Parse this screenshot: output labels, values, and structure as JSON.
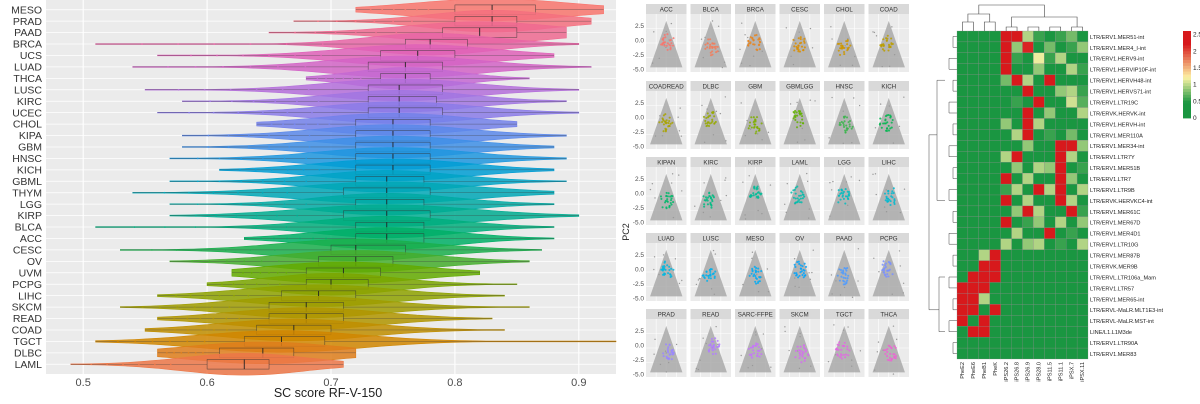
{
  "violin": {
    "xlabel": "SC score RF-V-150",
    "xticks": [
      0.5,
      0.6,
      0.7,
      0.8,
      0.9
    ],
    "xlim": [
      0.47,
      0.93
    ]
  },
  "pca": {
    "ylabel": "PC2",
    "yticks": [
      "2.5",
      "0.0",
      "-2.5",
      "-5.0"
    ]
  },
  "heatmap": {
    "legend_ticks": [
      "2.5",
      "2",
      "1.5",
      "1",
      "0.5",
      "0"
    ],
    "colors": {
      "high": "#d7191c",
      "mid": "#fdf3a6",
      "low": "#1a9641"
    }
  },
  "chart_data": [
    {
      "type": "violin",
      "xlabel": "SC score RF-V-150",
      "xlim": [
        0.47,
        0.93
      ],
      "categories": [
        {
          "name": "MESO",
          "median": 0.83,
          "q1": 0.8,
          "q3": 0.865,
          "min": 0.72,
          "max": 0.92,
          "color": "#F8766D"
        },
        {
          "name": "PRAD",
          "median": 0.83,
          "q1": 0.8,
          "q3": 0.85,
          "min": 0.67,
          "max": 0.91,
          "color": "#F4707F"
        },
        {
          "name": "PAAD",
          "median": 0.82,
          "q1": 0.79,
          "q3": 0.85,
          "min": 0.65,
          "max": 0.89,
          "color": "#EF6A91"
        },
        {
          "name": "BRCA",
          "median": 0.78,
          "q1": 0.76,
          "q3": 0.81,
          "min": 0.51,
          "max": 0.9,
          "color": "#E865A6"
        },
        {
          "name": "UCS",
          "median": 0.77,
          "q1": 0.74,
          "q3": 0.8,
          "min": 0.56,
          "max": 0.88,
          "color": "#DF62B8"
        },
        {
          "name": "LUAD",
          "median": 0.76,
          "q1": 0.73,
          "q3": 0.79,
          "min": 0.54,
          "max": 0.91,
          "color": "#D264C6"
        },
        {
          "name": "THCA",
          "median": 0.76,
          "q1": 0.74,
          "q3": 0.78,
          "min": 0.68,
          "max": 0.86,
          "color": "#C469D2"
        },
        {
          "name": "LUSC",
          "median": 0.755,
          "q1": 0.73,
          "q3": 0.79,
          "min": 0.55,
          "max": 0.9,
          "color": "#B46FDB"
        },
        {
          "name": "KIRC",
          "median": 0.755,
          "q1": 0.73,
          "q3": 0.785,
          "min": 0.58,
          "max": 0.89,
          "color": "#A175E2"
        },
        {
          "name": "UCEC",
          "median": 0.755,
          "q1": 0.73,
          "q3": 0.79,
          "min": 0.56,
          "max": 0.9,
          "color": "#8B7BE8"
        },
        {
          "name": "CHOL",
          "median": 0.75,
          "q1": 0.72,
          "q3": 0.78,
          "min": 0.64,
          "max": 0.85,
          "color": "#7381EA"
        },
        {
          "name": "KIPA",
          "median": 0.75,
          "q1": 0.72,
          "q3": 0.78,
          "min": 0.58,
          "max": 0.89,
          "color": "#5A88EA"
        },
        {
          "name": "GBM",
          "median": 0.75,
          "q1": 0.72,
          "q3": 0.78,
          "min": 0.58,
          "max": 0.88,
          "color": "#3E8FE6"
        },
        {
          "name": "HNSC",
          "median": 0.75,
          "q1": 0.72,
          "q3": 0.78,
          "min": 0.57,
          "max": 0.89,
          "color": "#1F97DE"
        },
        {
          "name": "KICH",
          "median": 0.75,
          "q1": 0.72,
          "q3": 0.78,
          "min": 0.61,
          "max": 0.88,
          "color": "#009DD4"
        },
        {
          "name": "GBML",
          "median": 0.745,
          "q1": 0.72,
          "q3": 0.775,
          "min": 0.57,
          "max": 0.89,
          "color": "#00A3C6"
        },
        {
          "name": "THYM",
          "median": 0.745,
          "q1": 0.71,
          "q3": 0.78,
          "min": 0.54,
          "max": 0.88,
          "color": "#00A7B6"
        },
        {
          "name": "LGG",
          "median": 0.745,
          "q1": 0.72,
          "q3": 0.775,
          "min": 0.57,
          "max": 0.88,
          "color": "#00AAA4"
        },
        {
          "name": "KIRP",
          "median": 0.745,
          "q1": 0.71,
          "q3": 0.78,
          "min": 0.57,
          "max": 0.9,
          "color": "#00AC90"
        },
        {
          "name": "BLCA",
          "median": 0.745,
          "q1": 0.72,
          "q3": 0.775,
          "min": 0.51,
          "max": 0.88,
          "color": "#00AE7C"
        },
        {
          "name": "ACC",
          "median": 0.745,
          "q1": 0.72,
          "q3": 0.775,
          "min": 0.63,
          "max": 0.88,
          "color": "#00AF66"
        },
        {
          "name": "CESC",
          "median": 0.72,
          "q1": 0.7,
          "q3": 0.76,
          "min": 0.53,
          "max": 0.87,
          "color": "#1AAF4C"
        },
        {
          "name": "OV",
          "median": 0.72,
          "q1": 0.69,
          "q3": 0.75,
          "min": 0.57,
          "max": 0.86,
          "color": "#45AD2D"
        },
        {
          "name": "UVM",
          "median": 0.71,
          "q1": 0.68,
          "q3": 0.74,
          "min": 0.62,
          "max": 0.82,
          "color": "#63AA00"
        },
        {
          "name": "PCPG",
          "median": 0.7,
          "q1": 0.68,
          "q3": 0.73,
          "min": 0.6,
          "max": 0.85,
          "color": "#7AA600"
        },
        {
          "name": "LIHC",
          "median": 0.69,
          "q1": 0.66,
          "q3": 0.72,
          "min": 0.56,
          "max": 0.84,
          "color": "#8EA200"
        },
        {
          "name": "SKCM",
          "median": 0.68,
          "q1": 0.65,
          "q3": 0.71,
          "min": 0.53,
          "max": 0.86,
          "color": "#A09C00"
        },
        {
          "name": "READ",
          "median": 0.68,
          "q1": 0.65,
          "q3": 0.71,
          "min": 0.56,
          "max": 0.83,
          "color": "#B09500"
        },
        {
          "name": "COAD",
          "median": 0.67,
          "q1": 0.64,
          "q3": 0.7,
          "min": 0.55,
          "max": 0.84,
          "color": "#C08E00"
        },
        {
          "name": "TGCT",
          "median": 0.66,
          "q1": 0.63,
          "q3": 0.695,
          "min": 0.51,
          "max": 0.93,
          "color": "#D08600"
        },
        {
          "name": "DLBC",
          "median": 0.645,
          "q1": 0.61,
          "q3": 0.67,
          "min": 0.56,
          "max": 0.72,
          "color": "#DE7E1B"
        },
        {
          "name": "LAML",
          "median": 0.63,
          "q1": 0.6,
          "q3": 0.65,
          "min": 0.49,
          "max": 0.71,
          "color": "#EC7748"
        }
      ]
    },
    {
      "type": "scatter",
      "ylabel": "PC2",
      "ylim": [
        -5.5,
        4.5
      ],
      "panels": [
        {
          "name": "ACC",
          "color": "#F8766D"
        },
        {
          "name": "BLCA",
          "color": "#F37B59"
        },
        {
          "name": "BRCA",
          "color": "#E8851E"
        },
        {
          "name": "CESC",
          "color": "#DB8E00"
        },
        {
          "name": "CHOL",
          "color": "#CC9600"
        },
        {
          "name": "COAD",
          "color": "#BB9D00"
        },
        {
          "name": "COADREAD",
          "color": "#A9A300"
        },
        {
          "name": "DLBC",
          "color": "#96A900"
        },
        {
          "name": "GBM",
          "color": "#7FAE00"
        },
        {
          "name": "GBMLGG",
          "color": "#63B200"
        },
        {
          "name": "HNSC",
          "color": "#3AB54B"
        },
        {
          "name": "KICH",
          "color": "#00B74F"
        },
        {
          "name": "KIPAN",
          "color": "#00B96A"
        },
        {
          "name": "KIRC",
          "color": "#00BB82"
        },
        {
          "name": "KIRP",
          "color": "#00BC98"
        },
        {
          "name": "LAML",
          "color": "#00BCAC"
        },
        {
          "name": "LGG",
          "color": "#00BCBF"
        },
        {
          "name": "LIHC",
          "color": "#00BAD0"
        },
        {
          "name": "LUAD",
          "color": "#00B7DF"
        },
        {
          "name": "LUSC",
          "color": "#00B2EC"
        },
        {
          "name": "MESO",
          "color": "#00ACF6"
        },
        {
          "name": "OV",
          "color": "#00A4FD"
        },
        {
          "name": "PAAD",
          "color": "#4E9BFF"
        },
        {
          "name": "PCPG",
          "color": "#7A91FF"
        },
        {
          "name": "PRAD",
          "color": "#9A87FF"
        },
        {
          "name": "READ",
          "color": "#B27DFF"
        },
        {
          "name": "SARC-FFPE",
          "color": "#C674FA"
        },
        {
          "name": "SKCM",
          "color": "#D66CF0"
        },
        {
          "name": "TGCT",
          "color": "#E366E3"
        },
        {
          "name": "THCA",
          "color": "#ED63D3"
        }
      ]
    },
    {
      "type": "heatmap",
      "rows": [
        "LTR/ERV1.MER51-int",
        "LTR/ERV1.MER4_I-int",
        "LTR/ERV1.HERV9-int",
        "LTR/ERV1.HERVIP10F-int",
        "LTR/ERV1.HERVH48-int",
        "LTR/ERV1.HERVS71-int",
        "LTR/ERV1.LTR19C",
        "LTR/ERVK.HERVK-int",
        "LTR/ERV1.HERVH-int",
        "LTR/ERV1.MER110A",
        "LTR/ERV1.MER34-int",
        "LTR/ERV1.LTR7Y",
        "LTR/ERV1.MER51B",
        "LTR/ERV1.LTR7",
        "LTR/ERV1.LTR9B",
        "LTR/ERVK.HERVKC4-int",
        "LTR/ERV1.MER61C",
        "LTR/ERV1.MER67D",
        "LTR/ERV1.MER4D1",
        "LTR/ERV1.LTR10G",
        "LTR/ERV1.MER87B",
        "LTR/ERVK.MER9B",
        "LTR/ERVL.LTR106a_Mam",
        "LTR/ERV1.LTR57",
        "LTR/ERV1.MER65-int",
        "LTR/ERVL-MaLR.MLT1E3-int",
        "LTR/ERVL-MaLR.MST-int",
        "LINE/L1.L1M3de",
        "LTR/ERV1.LTR90A",
        "LTR/ERV1.MER83"
      ],
      "columns": [
        "PheE2",
        "PheE6",
        "PheB1",
        "PheK",
        "iPS26.2",
        "iPS26.8",
        "iPS26.9",
        "iPS28.0",
        "iPS11.5",
        "iPS11.1",
        "iPSX.7",
        "iPSX.11"
      ],
      "values": [
        [
          0,
          0,
          0,
          0,
          2.5,
          2.4,
          1.0,
          0.6,
          0.3,
          0.6,
          0.8,
          0.3
        ],
        [
          0,
          0,
          0,
          0,
          2.4,
          0.9,
          2.2,
          0.5,
          0.8,
          0.3,
          0.6,
          0.9
        ],
        [
          0,
          0,
          0,
          0,
          2.6,
          0.6,
          0.4,
          1.2,
          0.6,
          1.0,
          0.4,
          0.4
        ],
        [
          0,
          0,
          0,
          0,
          2.3,
          0.5,
          0.3,
          0.9,
          0.3,
          0.4,
          1.0,
          0.6
        ],
        [
          0,
          0,
          0,
          0,
          0.8,
          2.4,
          1.0,
          0.3,
          2.5,
          0.4,
          0.3,
          0.2
        ],
        [
          0,
          0,
          0,
          0,
          0.4,
          0.3,
          2.5,
          0.2,
          0.3,
          0.9,
          1.0,
          0.6
        ],
        [
          0,
          0,
          0,
          0,
          0.3,
          0.6,
          0.4,
          2.4,
          0.5,
          0.3,
          1.1,
          0.7
        ],
        [
          0,
          0,
          0,
          0,
          0.4,
          0.5,
          2.5,
          0.4,
          0.9,
          0.4,
          0.3,
          1.0
        ],
        [
          0,
          0,
          0,
          0,
          0.9,
          0.4,
          2.4,
          1.0,
          0.4,
          0.3,
          0.4,
          0.3
        ],
        [
          0,
          0,
          0,
          0,
          0.5,
          1.0,
          2.3,
          0.4,
          0.6,
          0.4,
          0.8,
          0.4
        ],
        [
          0,
          0,
          0,
          0,
          0.4,
          0.3,
          0.9,
          0.3,
          0.4,
          2.5,
          2.4,
          0.9
        ],
        [
          0,
          0,
          0,
          0,
          1.0,
          2.4,
          0.5,
          0.4,
          0.5,
          2.4,
          1.0,
          0.5
        ],
        [
          0,
          0,
          0,
          0,
          0.4,
          0.9,
          0.4,
          1.0,
          0.9,
          2.5,
          0.4,
          0.6
        ],
        [
          0,
          0,
          0,
          0,
          2.3,
          0.4,
          1.0,
          0.3,
          0.4,
          2.4,
          0.9,
          0.3
        ],
        [
          0,
          0,
          0,
          0,
          0.6,
          1.0,
          0.3,
          2.3,
          1.0,
          2.4,
          0.5,
          1.0
        ],
        [
          0,
          0,
          0,
          0,
          2.4,
          0.5,
          1.0,
          0.3,
          0.3,
          2.5,
          1.0,
          0.4
        ],
        [
          0,
          0,
          0,
          0,
          0.3,
          0.9,
          2.3,
          1.0,
          0.5,
          0.4,
          2.4,
          0.6
        ],
        [
          0,
          0,
          0,
          0,
          2.3,
          0.4,
          0.6,
          0.9,
          0.4,
          1.0,
          0.3,
          0.9
        ],
        [
          0,
          0,
          0,
          0,
          0.5,
          1.0,
          0.3,
          0.4,
          2.4,
          0.4,
          0.6,
          0.5
        ],
        [
          0,
          0,
          0,
          0,
          1.0,
          0.3,
          0.9,
          1.0,
          0.3,
          0.6,
          0.3,
          1.0
        ],
        [
          0.2,
          0.3,
          1.0,
          2.4,
          0,
          0,
          0,
          0,
          0,
          0,
          0,
          0
        ],
        [
          0.3,
          0.4,
          2.4,
          2.5,
          0,
          0,
          0,
          0,
          0,
          0,
          0,
          0
        ],
        [
          0.4,
          2.3,
          2.5,
          2.4,
          0,
          0,
          0,
          0,
          0,
          0,
          0,
          0
        ],
        [
          2.3,
          2.5,
          2.4,
          0.3,
          0,
          0,
          0,
          0,
          0,
          0,
          0,
          0
        ],
        [
          2.4,
          2.4,
          1.0,
          0.2,
          0,
          0,
          0,
          0,
          0,
          0,
          0,
          0
        ],
        [
          2.5,
          2.3,
          0.3,
          2.4,
          0,
          0,
          0,
          0,
          0,
          0,
          0,
          0
        ],
        [
          2.4,
          0.4,
          2.4,
          0.3,
          0,
          0,
          0,
          0,
          0,
          0,
          0,
          0
        ],
        [
          0.3,
          2.4,
          2.5,
          0.2,
          0,
          0,
          0,
          0,
          0,
          0,
          0,
          0
        ],
        [
          0.2,
          0.3,
          0.4,
          0.2,
          0,
          0,
          0,
          0,
          0,
          0,
          0,
          0
        ],
        [
          0.2,
          0.2,
          0.3,
          0.2,
          0,
          0,
          0,
          0,
          0,
          0,
          0,
          0
        ]
      ]
    }
  ]
}
